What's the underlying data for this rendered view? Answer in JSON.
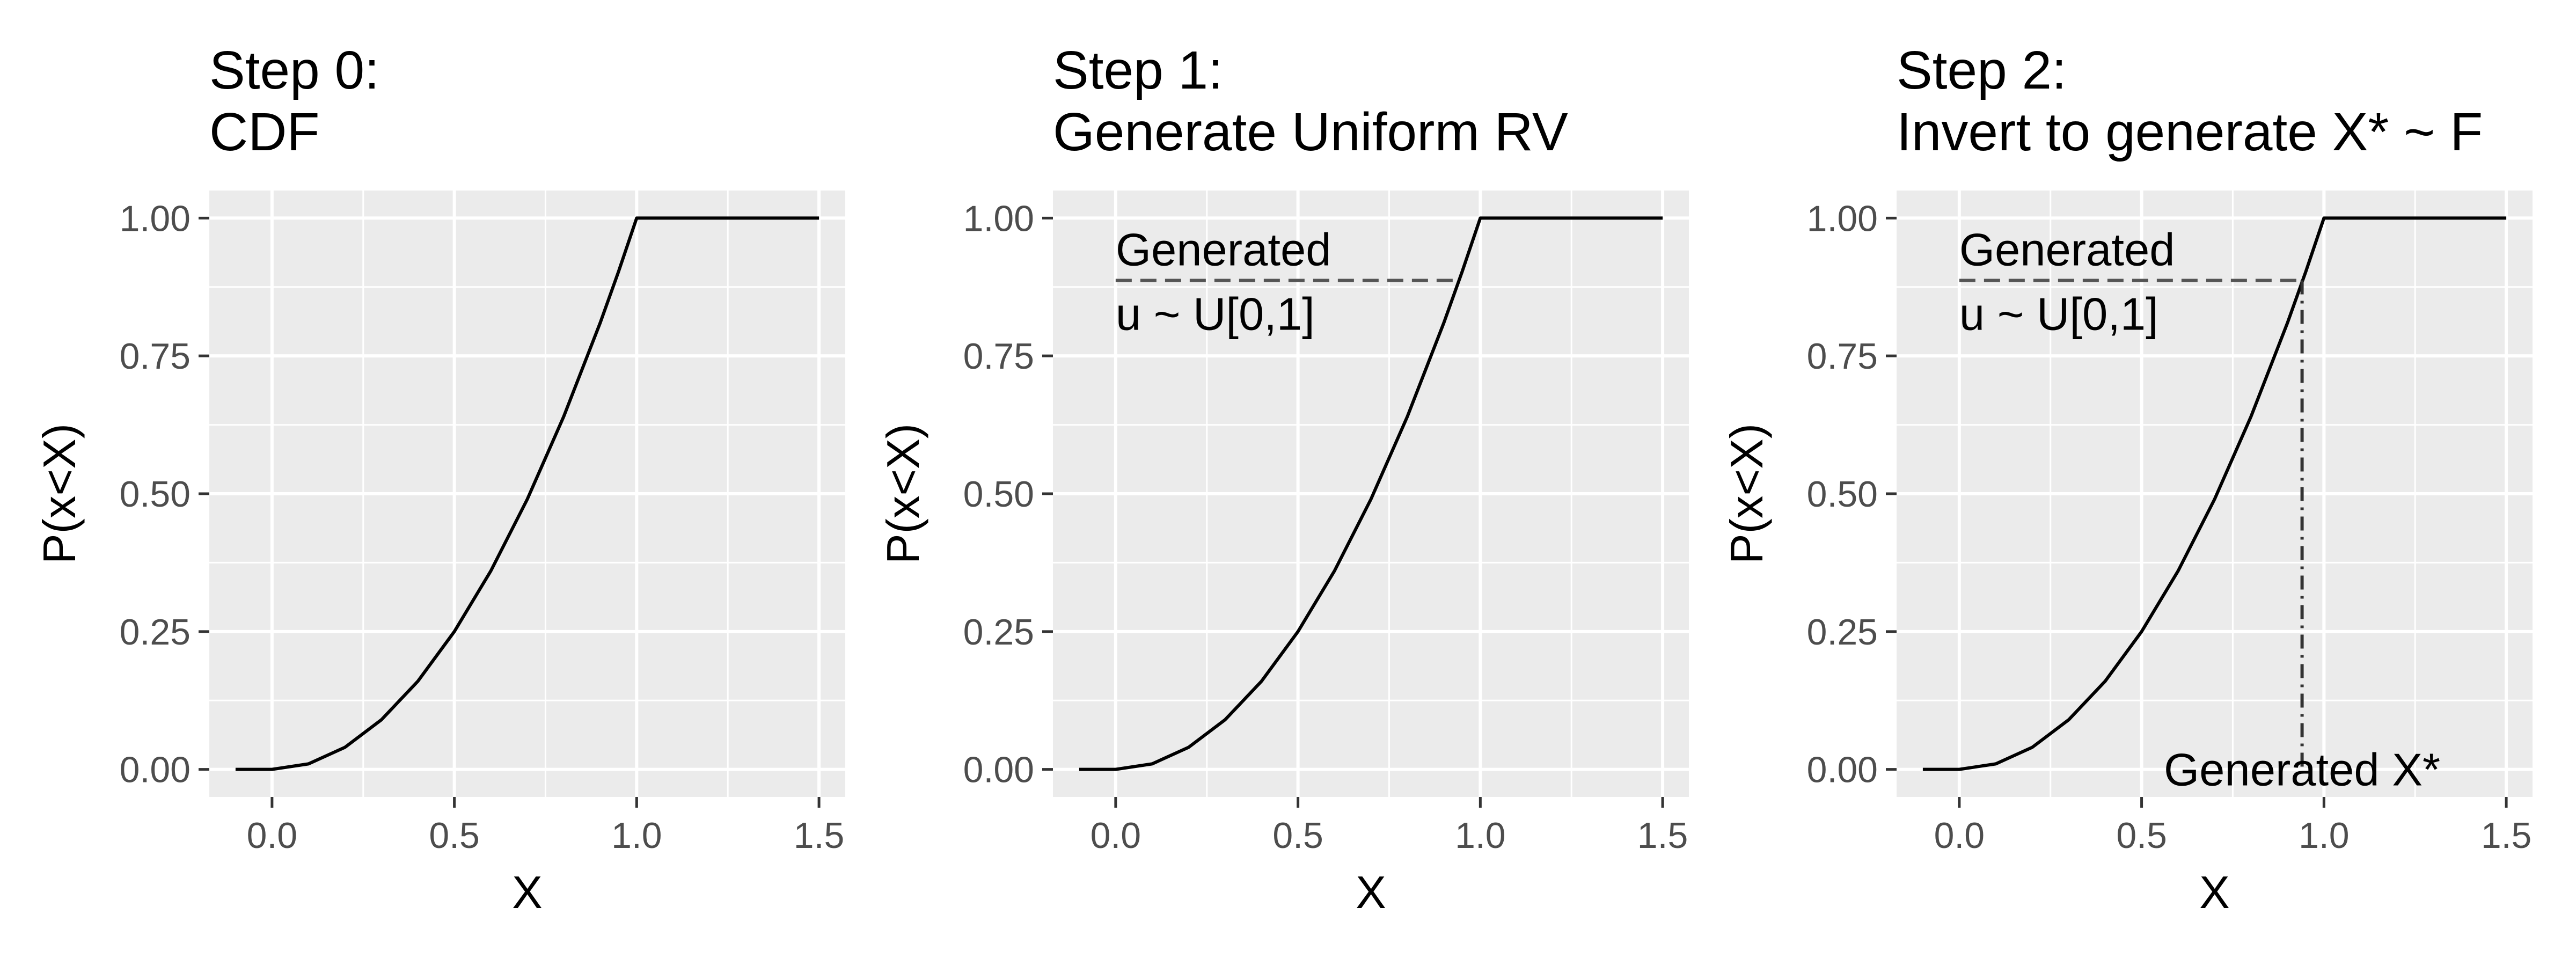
{
  "chart_data": [
    {
      "type": "line",
      "title_line1": "Step 0:",
      "title_line2": "CDF",
      "xlabel": "X",
      "ylabel": "P(x<X)",
      "xlim": [
        -0.1,
        1.5
      ],
      "ylim": [
        0,
        1
      ],
      "x_ticks": [
        0.0,
        0.5,
        1.0,
        1.5
      ],
      "x_tick_labels": [
        "0.0",
        "0.5",
        "1.0",
        "1.5"
      ],
      "y_ticks": [
        0.0,
        0.25,
        0.5,
        0.75,
        1.0
      ],
      "y_tick_labels": [
        "0.00",
        "0.25",
        "0.50",
        "0.75",
        "1.00"
      ],
      "grid": true,
      "series": [
        {
          "x": [
            -0.1,
            0.0,
            0.1,
            0.2,
            0.3,
            0.4,
            0.5,
            0.6,
            0.7,
            0.8,
            0.9,
            0.95,
            1.0,
            1.5
          ],
          "y": [
            0.0,
            0.0,
            0.01,
            0.04,
            0.09,
            0.16,
            0.25,
            0.36,
            0.49,
            0.64,
            0.81,
            0.9025,
            1.0,
            1.0
          ]
        }
      ]
    },
    {
      "type": "line",
      "title_line1": "Step 1:",
      "title_line2": "Generate Uniform RV",
      "xlabel": "X",
      "ylabel": "P(x<X)",
      "xlim": [
        -0.1,
        1.5
      ],
      "ylim": [
        0,
        1
      ],
      "x_ticks": [
        0.0,
        0.5,
        1.0,
        1.5
      ],
      "x_tick_labels": [
        "0.0",
        "0.5",
        "1.0",
        "1.5"
      ],
      "y_ticks": [
        0.0,
        0.25,
        0.5,
        0.75,
        1.0
      ],
      "y_tick_labels": [
        "0.00",
        "0.25",
        "0.50",
        "0.75",
        "1.00"
      ],
      "grid": true,
      "series": [
        {
          "x": [
            -0.1,
            0.0,
            0.1,
            0.2,
            0.3,
            0.4,
            0.5,
            0.6,
            0.7,
            0.8,
            0.9,
            0.95,
            1.0,
            1.5
          ],
          "y": [
            0.0,
            0.0,
            0.01,
            0.04,
            0.09,
            0.16,
            0.25,
            0.36,
            0.49,
            0.64,
            0.81,
            0.9025,
            1.0,
            1.0
          ]
        }
      ],
      "reference_lines": [
        {
          "type": "horizontal",
          "y": 0.887,
          "x_from": 0.0,
          "x_to": 0.93,
          "style": "dashed"
        }
      ],
      "annotations": [
        {
          "text_line1": "Generated",
          "text_line2": "u ~ U[0,1]",
          "x": 0.0,
          "y": 0.887
        }
      ]
    },
    {
      "type": "line",
      "title_line1": "Step 2:",
      "title_line2": "Invert to generate X* ~ F",
      "xlabel": "X",
      "ylabel": "P(x<X)",
      "xlim": [
        -0.1,
        1.5
      ],
      "ylim": [
        0,
        1
      ],
      "x_ticks": [
        0.0,
        0.5,
        1.0,
        1.5
      ],
      "x_tick_labels": [
        "0.0",
        "0.5",
        "1.0",
        "1.5"
      ],
      "y_ticks": [
        0.0,
        0.25,
        0.5,
        0.75,
        1.0
      ],
      "y_tick_labels": [
        "0.00",
        "0.25",
        "0.50",
        "0.75",
        "1.00"
      ],
      "grid": true,
      "series": [
        {
          "x": [
            -0.1,
            0.0,
            0.1,
            0.2,
            0.3,
            0.4,
            0.5,
            0.6,
            0.7,
            0.8,
            0.9,
            0.95,
            1.0,
            1.5
          ],
          "y": [
            0.0,
            0.0,
            0.01,
            0.04,
            0.09,
            0.16,
            0.25,
            0.36,
            0.49,
            0.64,
            0.81,
            0.9025,
            1.0,
            1.0
          ]
        }
      ],
      "reference_lines": [
        {
          "type": "horizontal",
          "y": 0.887,
          "x_from": 0.0,
          "x_to": 0.94,
          "style": "dashed"
        },
        {
          "type": "vertical",
          "x": 0.94,
          "y_from": 0.0,
          "y_to": 0.887,
          "style": "dotdash"
        }
      ],
      "annotations": [
        {
          "text_line1": "Generated",
          "text_line2": "u ~ U[0,1]",
          "x": 0.0,
          "y": 0.887
        },
        {
          "text": "Generated X*",
          "x": 0.94,
          "y": 0.0
        }
      ]
    }
  ]
}
